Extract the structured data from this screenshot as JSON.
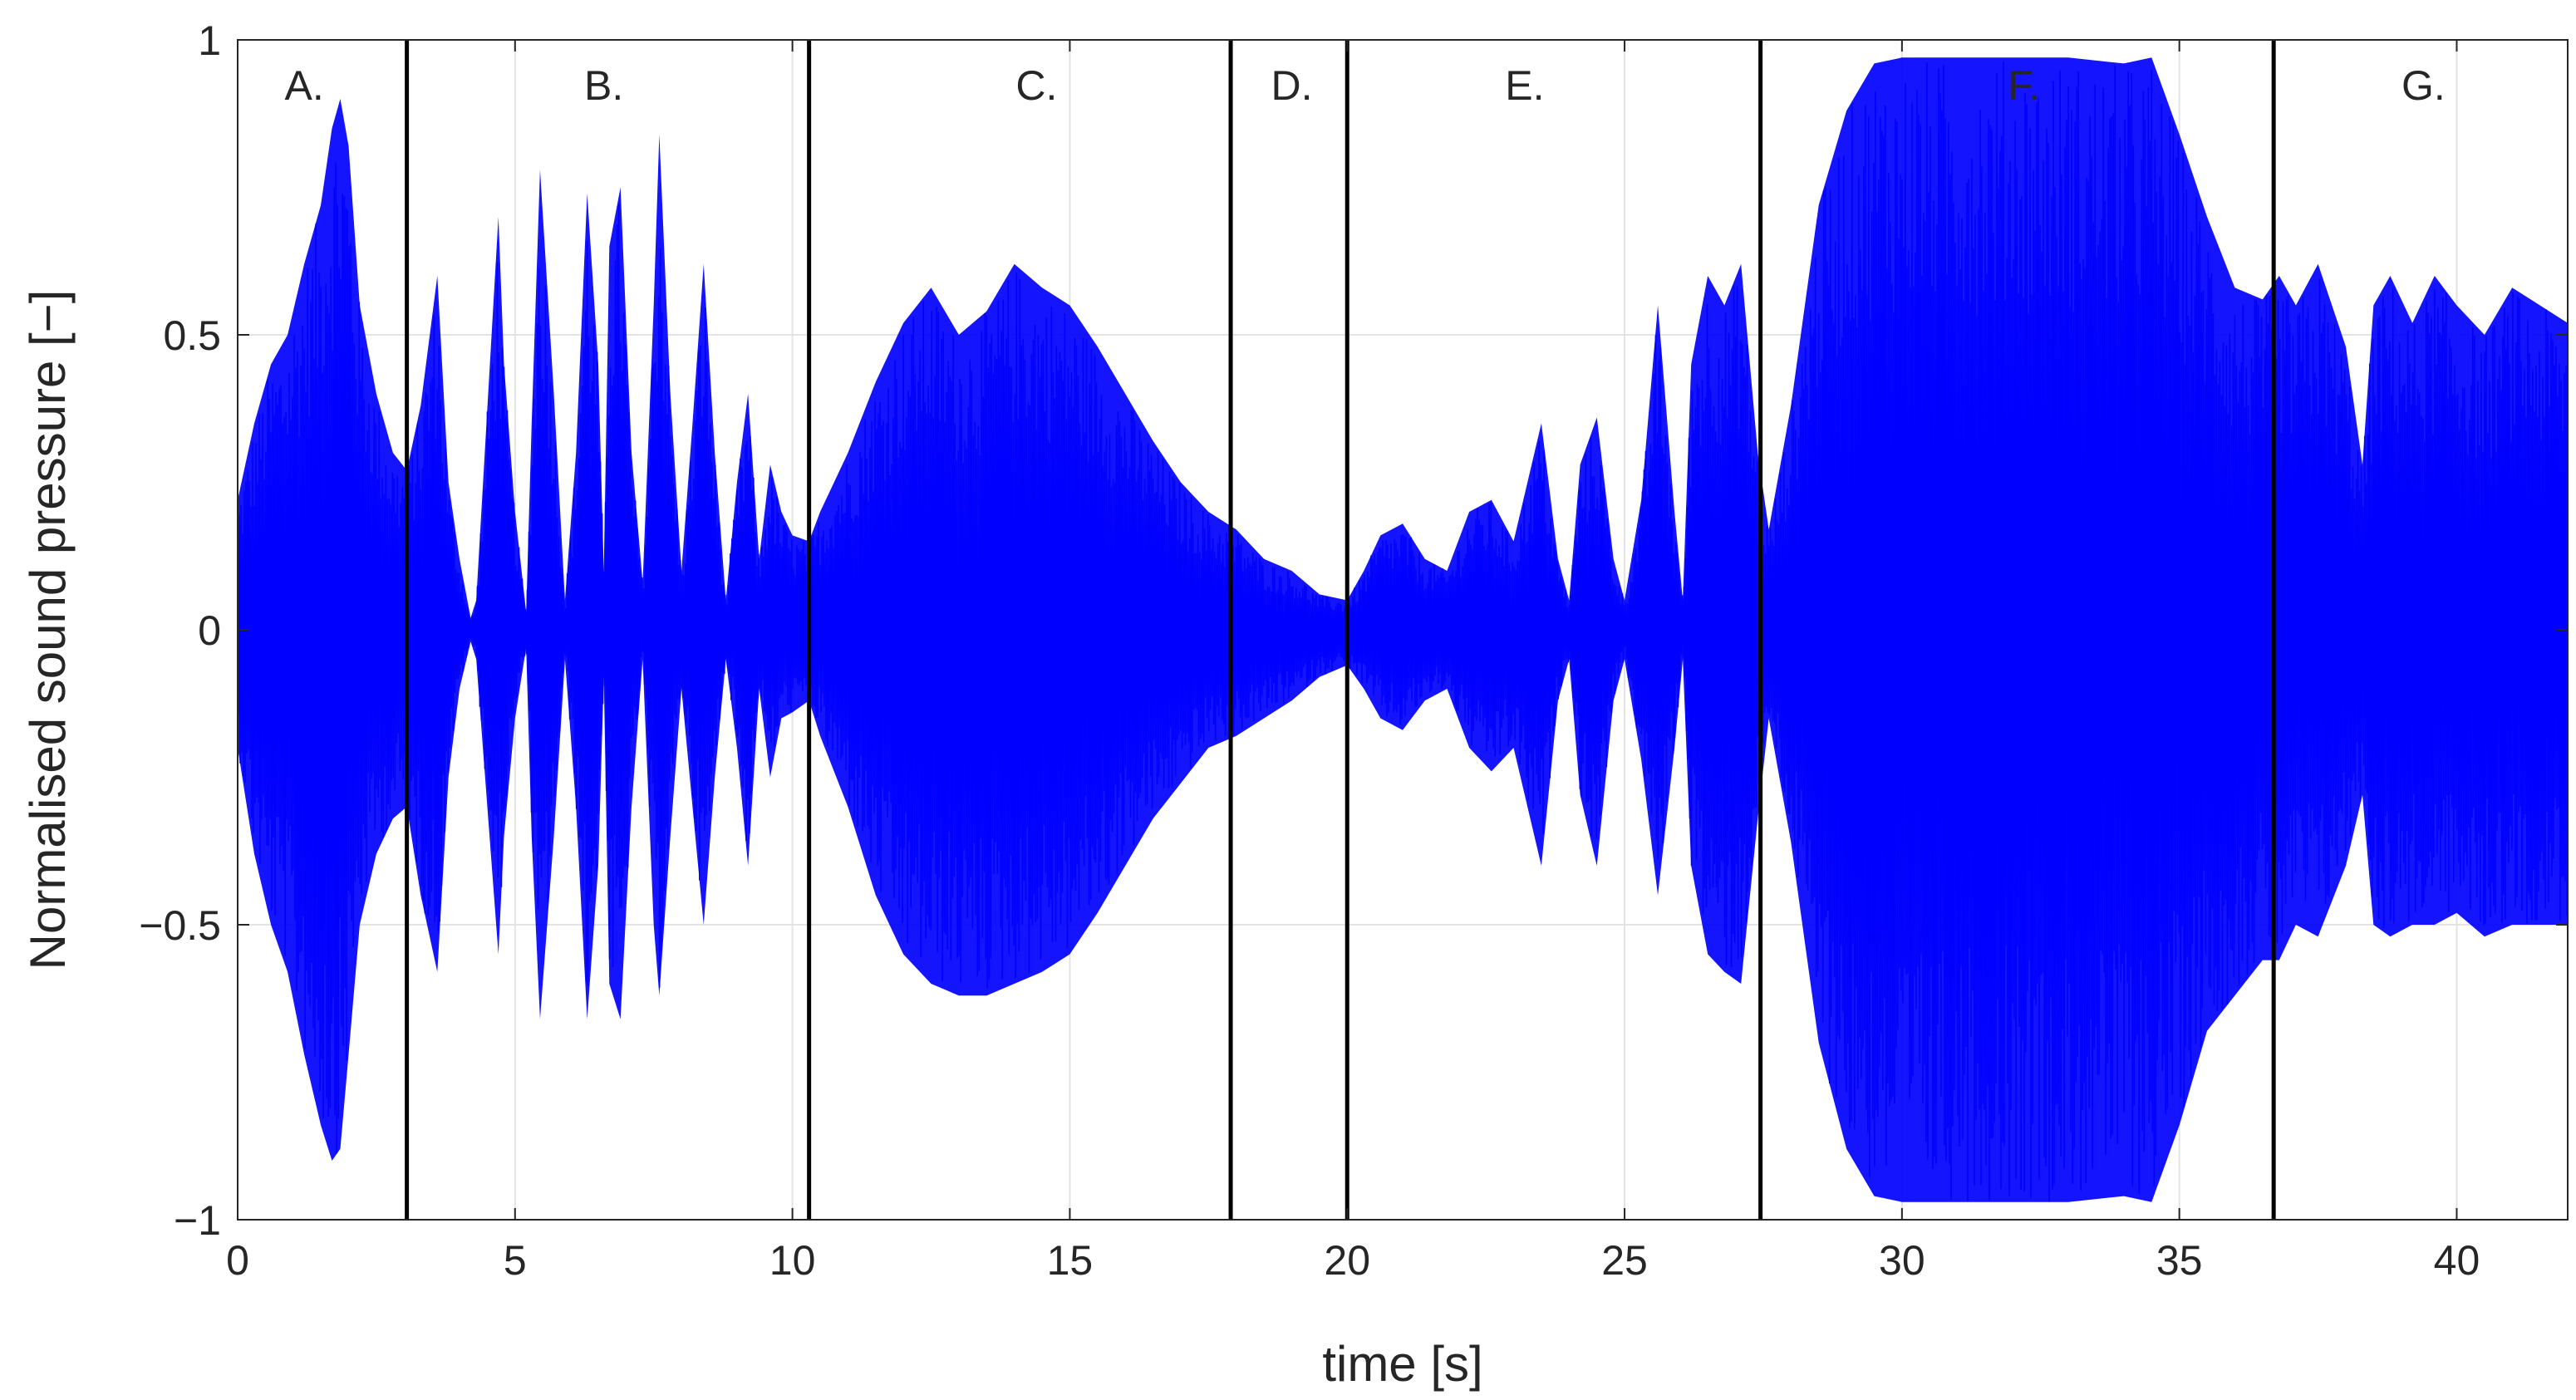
{
  "chart_data": {
    "type": "line",
    "xlabel": "time [s]",
    "ylabel": "Normalised sound pressure [−]",
    "xlim": [
      0,
      42
    ],
    "ylim": [
      -1,
      1
    ],
    "x_ticks": [
      0,
      5,
      10,
      15,
      20,
      25,
      30,
      35,
      40
    ],
    "x_tick_labels": [
      "0",
      "5",
      "10",
      "15",
      "20",
      "25",
      "30",
      "35",
      "40"
    ],
    "y_ticks": [
      -1,
      -0.5,
      0,
      0.5,
      1
    ],
    "y_tick_labels": [
      "−1",
      "−0.5",
      "0",
      "0.5",
      "1"
    ],
    "grid": true,
    "series": [
      {
        "color": "#0000ff",
        "envelope_positive": {
          "x": [
            0,
            0.3,
            0.6,
            0.9,
            1.2,
            1.5,
            1.7,
            1.85,
            2.0,
            2.2,
            2.5,
            2.8,
            3.05,
            3.3,
            3.6,
            3.8,
            4.0,
            4.2,
            4.3,
            4.7,
            4.8,
            5.0,
            5.2,
            5.3,
            5.45,
            5.7,
            5.9,
            6.1,
            6.3,
            6.5,
            6.6,
            6.7,
            6.9,
            7.1,
            7.3,
            7.5,
            7.6,
            7.8,
            8.0,
            8.2,
            8.4,
            8.6,
            8.8,
            9.0,
            9.2,
            9.4,
            9.6,
            9.8,
            10.0,
            10.3,
            10.5,
            11.0,
            11.5,
            12.0,
            12.5,
            13.0,
            13.5,
            14.0,
            14.5,
            15.0,
            15.5,
            16.0,
            16.5,
            17.0,
            17.5,
            18.0,
            18.5,
            19.0,
            19.5,
            20.0,
            20.3,
            20.6,
            21.0,
            21.4,
            21.8,
            22.2,
            22.6,
            23.0,
            23.5,
            23.8,
            24.0,
            24.2,
            24.5,
            24.8,
            25.0,
            25.3,
            25.6,
            25.9,
            26.05,
            26.2,
            26.5,
            26.8,
            27.1,
            27.4,
            27.6,
            28.0,
            28.5,
            29.0,
            29.5,
            30.0,
            30.3,
            31.0,
            32.0,
            33.0,
            34.0,
            34.5,
            35.0,
            35.5,
            36.0,
            36.5,
            36.8,
            37.1,
            37.5,
            38.0,
            38.3,
            38.5,
            38.8,
            39.2,
            39.6,
            40.0,
            40.5,
            41.0,
            41.5,
            42.0
          ],
          "y": [
            0.22,
            0.35,
            0.45,
            0.5,
            0.62,
            0.72,
            0.85,
            0.9,
            0.82,
            0.55,
            0.4,
            0.3,
            0.27,
            0.38,
            0.6,
            0.25,
            0.12,
            0.02,
            0.05,
            0.7,
            0.45,
            0.2,
            0.03,
            0.35,
            0.78,
            0.4,
            0.05,
            0.3,
            0.74,
            0.45,
            0.1,
            0.65,
            0.75,
            0.3,
            0.08,
            0.55,
            0.84,
            0.4,
            0.1,
            0.35,
            0.62,
            0.3,
            0.05,
            0.25,
            0.4,
            0.12,
            0.28,
            0.2,
            0.16,
            0.15,
            0.2,
            0.3,
            0.42,
            0.52,
            0.58,
            0.5,
            0.54,
            0.62,
            0.58,
            0.55,
            0.48,
            0.4,
            0.32,
            0.25,
            0.2,
            0.17,
            0.12,
            0.1,
            0.06,
            0.05,
            0.1,
            0.16,
            0.18,
            0.12,
            0.1,
            0.2,
            0.22,
            0.15,
            0.35,
            0.12,
            0.05,
            0.28,
            0.36,
            0.12,
            0.05,
            0.22,
            0.55,
            0.2,
            0.05,
            0.45,
            0.6,
            0.55,
            0.62,
            0.3,
            0.17,
            0.38,
            0.72,
            0.88,
            0.96,
            0.97,
            0.97,
            0.97,
            0.97,
            0.97,
            0.96,
            0.97,
            0.84,
            0.7,
            0.58,
            0.56,
            0.6,
            0.55,
            0.62,
            0.48,
            0.28,
            0.55,
            0.6,
            0.52,
            0.6,
            0.55,
            0.5,
            0.58,
            0.55,
            0.52
          ]
        },
        "envelope_negative": {
          "x": [
            0,
            0.3,
            0.6,
            0.9,
            1.2,
            1.5,
            1.7,
            1.85,
            2.0,
            2.2,
            2.5,
            2.8,
            3.05,
            3.3,
            3.6,
            3.8,
            4.0,
            4.2,
            4.3,
            4.7,
            4.8,
            5.0,
            5.2,
            5.3,
            5.45,
            5.7,
            5.9,
            6.1,
            6.3,
            6.5,
            6.6,
            6.7,
            6.9,
            7.1,
            7.3,
            7.5,
            7.6,
            7.8,
            8.0,
            8.2,
            8.4,
            8.6,
            8.8,
            9.0,
            9.2,
            9.4,
            9.6,
            9.8,
            10.0,
            10.3,
            10.5,
            11.0,
            11.5,
            12.0,
            12.5,
            13.0,
            13.5,
            14.0,
            14.5,
            15.0,
            15.5,
            16.0,
            16.5,
            17.0,
            17.5,
            18.0,
            18.5,
            19.0,
            19.5,
            20.0,
            20.3,
            20.6,
            21.0,
            21.4,
            21.8,
            22.2,
            22.6,
            23.0,
            23.5,
            23.8,
            24.0,
            24.2,
            24.5,
            24.8,
            25.0,
            25.3,
            25.6,
            25.9,
            26.05,
            26.2,
            26.5,
            26.8,
            27.1,
            27.4,
            27.6,
            28.0,
            28.5,
            29.0,
            29.5,
            30.0,
            30.3,
            31.0,
            32.0,
            33.0,
            34.0,
            34.5,
            35.0,
            35.5,
            36.0,
            36.5,
            36.8,
            37.1,
            37.5,
            38.0,
            38.3,
            38.5,
            38.8,
            39.2,
            39.6,
            40.0,
            40.5,
            41.0,
            41.5,
            42.0
          ],
          "y": [
            -0.2,
            -0.38,
            -0.5,
            -0.58,
            -0.72,
            -0.84,
            -0.9,
            -0.88,
            -0.72,
            -0.5,
            -0.38,
            -0.32,
            -0.3,
            -0.45,
            -0.58,
            -0.25,
            -0.1,
            -0.02,
            -0.05,
            -0.55,
            -0.35,
            -0.15,
            -0.03,
            -0.35,
            -0.66,
            -0.35,
            -0.05,
            -0.3,
            -0.66,
            -0.4,
            -0.08,
            -0.6,
            -0.66,
            -0.3,
            -0.05,
            -0.5,
            -0.62,
            -0.35,
            -0.1,
            -0.3,
            -0.5,
            -0.25,
            -0.05,
            -0.2,
            -0.4,
            -0.1,
            -0.25,
            -0.15,
            -0.14,
            -0.12,
            -0.18,
            -0.3,
            -0.45,
            -0.55,
            -0.6,
            -0.62,
            -0.62,
            -0.6,
            -0.58,
            -0.55,
            -0.48,
            -0.4,
            -0.32,
            -0.26,
            -0.2,
            -0.18,
            -0.15,
            -0.12,
            -0.08,
            -0.06,
            -0.1,
            -0.15,
            -0.17,
            -0.12,
            -0.1,
            -0.2,
            -0.24,
            -0.2,
            -0.4,
            -0.12,
            -0.05,
            -0.28,
            -0.4,
            -0.12,
            -0.05,
            -0.22,
            -0.45,
            -0.2,
            -0.05,
            -0.4,
            -0.55,
            -0.58,
            -0.6,
            -0.32,
            -0.15,
            -0.36,
            -0.7,
            -0.88,
            -0.96,
            -0.97,
            -0.97,
            -0.97,
            -0.97,
            -0.97,
            -0.96,
            -0.97,
            -0.84,
            -0.68,
            -0.62,
            -0.56,
            -0.56,
            -0.5,
            -0.52,
            -0.4,
            -0.28,
            -0.5,
            -0.52,
            -0.5,
            -0.5,
            -0.48,
            -0.52,
            -0.5,
            -0.5,
            -0.5
          ]
        }
      }
    ],
    "segment_boundaries": [
      3.05,
      10.3,
      17.9,
      20.0,
      27.45,
      36.7
    ],
    "segment_labels": [
      {
        "text": "A.",
        "x": 1.2
      },
      {
        "text": "B.",
        "x": 6.6
      },
      {
        "text": "C.",
        "x": 14.4
      },
      {
        "text": "D.",
        "x": 19.0
      },
      {
        "text": "E.",
        "x": 23.2
      },
      {
        "text": "F.",
        "x": 32.2
      },
      {
        "text": "G.",
        "x": 39.4
      }
    ]
  }
}
